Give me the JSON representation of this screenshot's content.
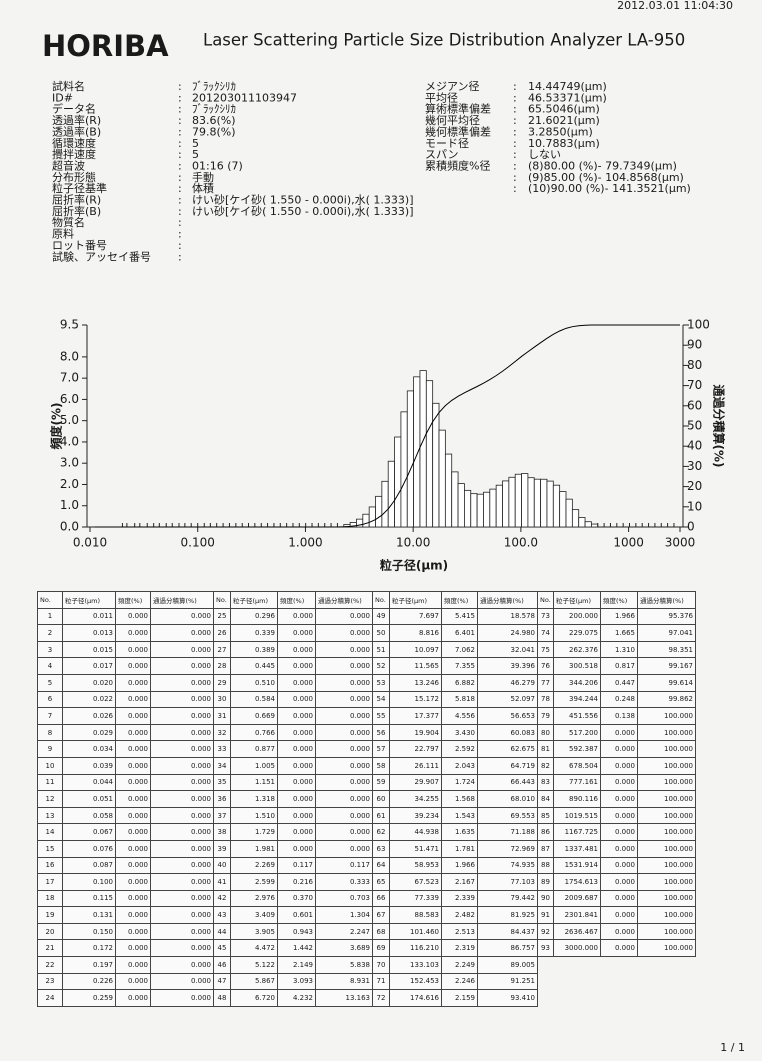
{
  "header": {
    "datetime": "2012.03.01 11:04:30",
    "brand": "HORIBA",
    "title": "Laser Scattering Particle Size Distribution Analyzer LA-950"
  },
  "separator": ":",
  "info_left": [
    {
      "label": "試料名",
      "value": "ﾌﾞﾗｯｸｼﾘｶ"
    },
    {
      "label": "ID#",
      "value": "201203011103947"
    },
    {
      "label": "データ名",
      "value": "ﾌﾞﾗｯｸｼﾘｶ"
    },
    {
      "label": "透過率(R)",
      "value": "83.6(%)"
    },
    {
      "label": "透過率(B)",
      "value": "79.8(%)"
    },
    {
      "label": "循環速度",
      "value": "5"
    },
    {
      "label": "攪拌速度",
      "value": "5"
    },
    {
      "label": "超音波",
      "value": "01:16 (7)"
    },
    {
      "label": "分布形態",
      "value": "手動"
    },
    {
      "label": "粒子径基準",
      "value": "体積"
    },
    {
      "label": "屈折率(R)",
      "value": "けい砂[ケイ砂( 1.550 -  0.000i),水( 1.333)]"
    },
    {
      "label": "屈折率(B)",
      "value": "けい砂[ケイ砂( 1.550 -  0.000i),水( 1.333)]"
    },
    {
      "label": "物質名"
    },
    {
      "label": "原料"
    },
    {
      "label": "ロット番号"
    },
    {
      "label": "試験、アッセイ番号"
    }
  ],
  "info_right": [
    {
      "label": "メジアン径",
      "value": "14.44749(μm)"
    },
    {
      "label": "平均径",
      "value": "46.53371(μm)"
    },
    {
      "label": "算術標準偏差",
      "value": "65.5046(μm)"
    },
    {
      "label": "幾何平均径",
      "value": "21.6021(μm)"
    },
    {
      "label": "幾何標準偏差",
      "value": "3.2850(μm)"
    },
    {
      "label": "モード径",
      "value": "10.7883(μm)"
    },
    {
      "label": "スパン",
      "value": "しない"
    },
    {
      "label": "累積頻度%径",
      "value": "(8)80.00 (%)-  79.7349(μm)"
    },
    {
      "value": "(9)85.00 (%)- 104.8568(μm)"
    },
    {
      "value": "(10)90.00 (%)- 141.3521(μm)"
    }
  ],
  "chart_data": {
    "type": "histogram",
    "xlabel": "粒子径(μm)",
    "ylabel": "頻度(%)",
    "y2label": "通過分積算(%)",
    "log_x": true,
    "xlim": [
      0.01,
      3000
    ],
    "xticks": [
      {
        "value": 0.01,
        "label": "0.010"
      },
      {
        "value": 0.1,
        "label": "0.100"
      },
      {
        "value": 1,
        "label": "1.000"
      },
      {
        "value": 10,
        "label": "10.00"
      },
      {
        "value": 100,
        "label": "100.0"
      },
      1000,
      3000
    ],
    "ylim": [
      0,
      9.5
    ],
    "yticks": [
      {
        "value": 0,
        "label": "0.0"
      },
      {
        "value": 1,
        "label": "1.0"
      },
      {
        "value": 2,
        "label": "2.0"
      },
      {
        "value": 3,
        "label": "3.0"
      },
      {
        "value": 4,
        "label": "4.0"
      },
      {
        "value": 5,
        "label": "5.0"
      },
      {
        "value": 6,
        "label": "6.0"
      },
      {
        "value": 7,
        "label": "7.0"
      },
      {
        "value": 8,
        "label": "8.0"
      },
      9.5
    ],
    "y2lim": [
      0,
      100
    ],
    "y2ticks": [
      0,
      10,
      20,
      30,
      40,
      50,
      60,
      70,
      80,
      90,
      100
    ],
    "color": "#ffffff",
    "line_color": "#000000"
  },
  "table": {
    "columns": [
      "No.",
      "粒子径(μm)",
      "頻度(%)",
      "通過分積算(%)"
    ],
    "rows": [
      [
        "1",
        "0.011",
        "0.000",
        "0.000"
      ],
      [
        "2",
        "0.013",
        "0.000",
        "0.000"
      ],
      [
        "3",
        "0.015",
        "0.000",
        "0.000"
      ],
      [
        "4",
        "0.017",
        "0.000",
        "0.000"
      ],
      [
        "5",
        "0.020",
        "0.000",
        "0.000"
      ],
      [
        "6",
        "0.022",
        "0.000",
        "0.000"
      ],
      [
        "7",
        "0.026",
        "0.000",
        "0.000"
      ],
      [
        "8",
        "0.029",
        "0.000",
        "0.000"
      ],
      [
        "9",
        "0.034",
        "0.000",
        "0.000"
      ],
      [
        "10",
        "0.039",
        "0.000",
        "0.000"
      ],
      [
        "11",
        "0.044",
        "0.000",
        "0.000"
      ],
      [
        "12",
        "0.051",
        "0.000",
        "0.000"
      ],
      [
        "13",
        "0.058",
        "0.000",
        "0.000"
      ],
      [
        "14",
        "0.067",
        "0.000",
        "0.000"
      ],
      [
        "15",
        "0.076",
        "0.000",
        "0.000"
      ],
      [
        "16",
        "0.087",
        "0.000",
        "0.000"
      ],
      [
        "17",
        "0.100",
        "0.000",
        "0.000"
      ],
      [
        "18",
        "0.115",
        "0.000",
        "0.000"
      ],
      [
        "19",
        "0.131",
        "0.000",
        "0.000"
      ],
      [
        "20",
        "0.150",
        "0.000",
        "0.000"
      ],
      [
        "21",
        "0.172",
        "0.000",
        "0.000"
      ],
      [
        "22",
        "0.197",
        "0.000",
        "0.000"
      ],
      [
        "23",
        "0.226",
        "0.000",
        "0.000"
      ],
      [
        "24",
        "0.259",
        "0.000",
        "0.000"
      ],
      [
        "25",
        "0.296",
        "0.000",
        "0.000"
      ],
      [
        "26",
        "0.339",
        "0.000",
        "0.000"
      ],
      [
        "27",
        "0.389",
        "0.000",
        "0.000"
      ],
      [
        "28",
        "0.445",
        "0.000",
        "0.000"
      ],
      [
        "29",
        "0.510",
        "0.000",
        "0.000"
      ],
      [
        "30",
        "0.584",
        "0.000",
        "0.000"
      ],
      [
        "31",
        "0.669",
        "0.000",
        "0.000"
      ],
      [
        "32",
        "0.766",
        "0.000",
        "0.000"
      ],
      [
        "33",
        "0.877",
        "0.000",
        "0.000"
      ],
      [
        "34",
        "1.005",
        "0.000",
        "0.000"
      ],
      [
        "35",
        "1.151",
        "0.000",
        "0.000"
      ],
      [
        "36",
        "1.318",
        "0.000",
        "0.000"
      ],
      [
        "37",
        "1.510",
        "0.000",
        "0.000"
      ],
      [
        "38",
        "1.729",
        "0.000",
        "0.000"
      ],
      [
        "39",
        "1.981",
        "0.000",
        "0.000"
      ],
      [
        "40",
        "2.269",
        "0.117",
        "0.117"
      ],
      [
        "41",
        "2.599",
        "0.216",
        "0.333"
      ],
      [
        "42",
        "2.976",
        "0.370",
        "0.703"
      ],
      [
        "43",
        "3.409",
        "0.601",
        "1.304"
      ],
      [
        "44",
        "3.905",
        "0.943",
        "2.247"
      ],
      [
        "45",
        "4.472",
        "1.442",
        "3.689"
      ],
      [
        "46",
        "5.122",
        "2.149",
        "5.838"
      ],
      [
        "47",
        "5.867",
        "3.093",
        "8.931"
      ],
      [
        "48",
        "6.720",
        "4.232",
        "13.163"
      ],
      [
        "49",
        "7.697",
        "5.415",
        "18.578"
      ],
      [
        "50",
        "8.816",
        "6.401",
        "24.980"
      ],
      [
        "51",
        "10.097",
        "7.062",
        "32.041"
      ],
      [
        "52",
        "11.565",
        "7.355",
        "39.396"
      ],
      [
        "53",
        "13.246",
        "6.882",
        "46.279"
      ],
      [
        "54",
        "15.172",
        "5.818",
        "52.097"
      ],
      [
        "55",
        "17.377",
        "4.556",
        "56.653"
      ],
      [
        "56",
        "19.904",
        "3.430",
        "60.083"
      ],
      [
        "57",
        "22.797",
        "2.592",
        "62.675"
      ],
      [
        "58",
        "26.111",
        "2.043",
        "64.719"
      ],
      [
        "59",
        "29.907",
        "1.724",
        "66.443"
      ],
      [
        "60",
        "34.255",
        "1.568",
        "68.010"
      ],
      [
        "61",
        "39.234",
        "1.543",
        "69.553"
      ],
      [
        "62",
        "44.938",
        "1.635",
        "71.188"
      ],
      [
        "63",
        "51.471",
        "1.781",
        "72.969"
      ],
      [
        "64",
        "58.953",
        "1.966",
        "74.935"
      ],
      [
        "65",
        "67.523",
        "2.167",
        "77.103"
      ],
      [
        "66",
        "77.339",
        "2.339",
        "79.442"
      ],
      [
        "67",
        "88.583",
        "2.482",
        "81.925"
      ],
      [
        "68",
        "101.460",
        "2.513",
        "84.437"
      ],
      [
        "69",
        "116.210",
        "2.319",
        "86.757"
      ],
      [
        "70",
        "133.103",
        "2.249",
        "89.005"
      ],
      [
        "71",
        "152.453",
        "2.246",
        "91.251"
      ],
      [
        "72",
        "174.616",
        "2.159",
        "93.410"
      ],
      [
        "73",
        "200.000",
        "1.966",
        "95.376"
      ],
      [
        "74",
        "229.075",
        "1.665",
        "97.041"
      ],
      [
        "75",
        "262.376",
        "1.310",
        "98.351"
      ],
      [
        "76",
        "300.518",
        "0.817",
        "99.167"
      ],
      [
        "77",
        "344.206",
        "0.447",
        "99.614"
      ],
      [
        "78",
        "394.244",
        "0.248",
        "99.862"
      ],
      [
        "79",
        "451.556",
        "0.138",
        "100.000"
      ],
      [
        "80",
        "517.200",
        "0.000",
        "100.000"
      ],
      [
        "81",
        "592.387",
        "0.000",
        "100.000"
      ],
      [
        "82",
        "678.504",
        "0.000",
        "100.000"
      ],
      [
        "83",
        "777.161",
        "0.000",
        "100.000"
      ],
      [
        "84",
        "890.116",
        "0.000",
        "100.000"
      ],
      [
        "85",
        "1019.515",
        "0.000",
        "100.000"
      ],
      [
        "86",
        "1167.725",
        "0.000",
        "100.000"
      ],
      [
        "87",
        "1337.481",
        "0.000",
        "100.000"
      ],
      [
        "88",
        "1531.914",
        "0.000",
        "100.000"
      ],
      [
        "89",
        "1754.613",
        "0.000",
        "100.000"
      ],
      [
        "90",
        "2009.687",
        "0.000",
        "100.000"
      ],
      [
        "91",
        "2301.841",
        "0.000",
        "100.000"
      ],
      [
        "92",
        "2636.467",
        "0.000",
        "100.000"
      ],
      [
        "93",
        "3000.000",
        "0.000",
        "100.000"
      ]
    ]
  },
  "footer": {
    "page": "1 / 1"
  }
}
